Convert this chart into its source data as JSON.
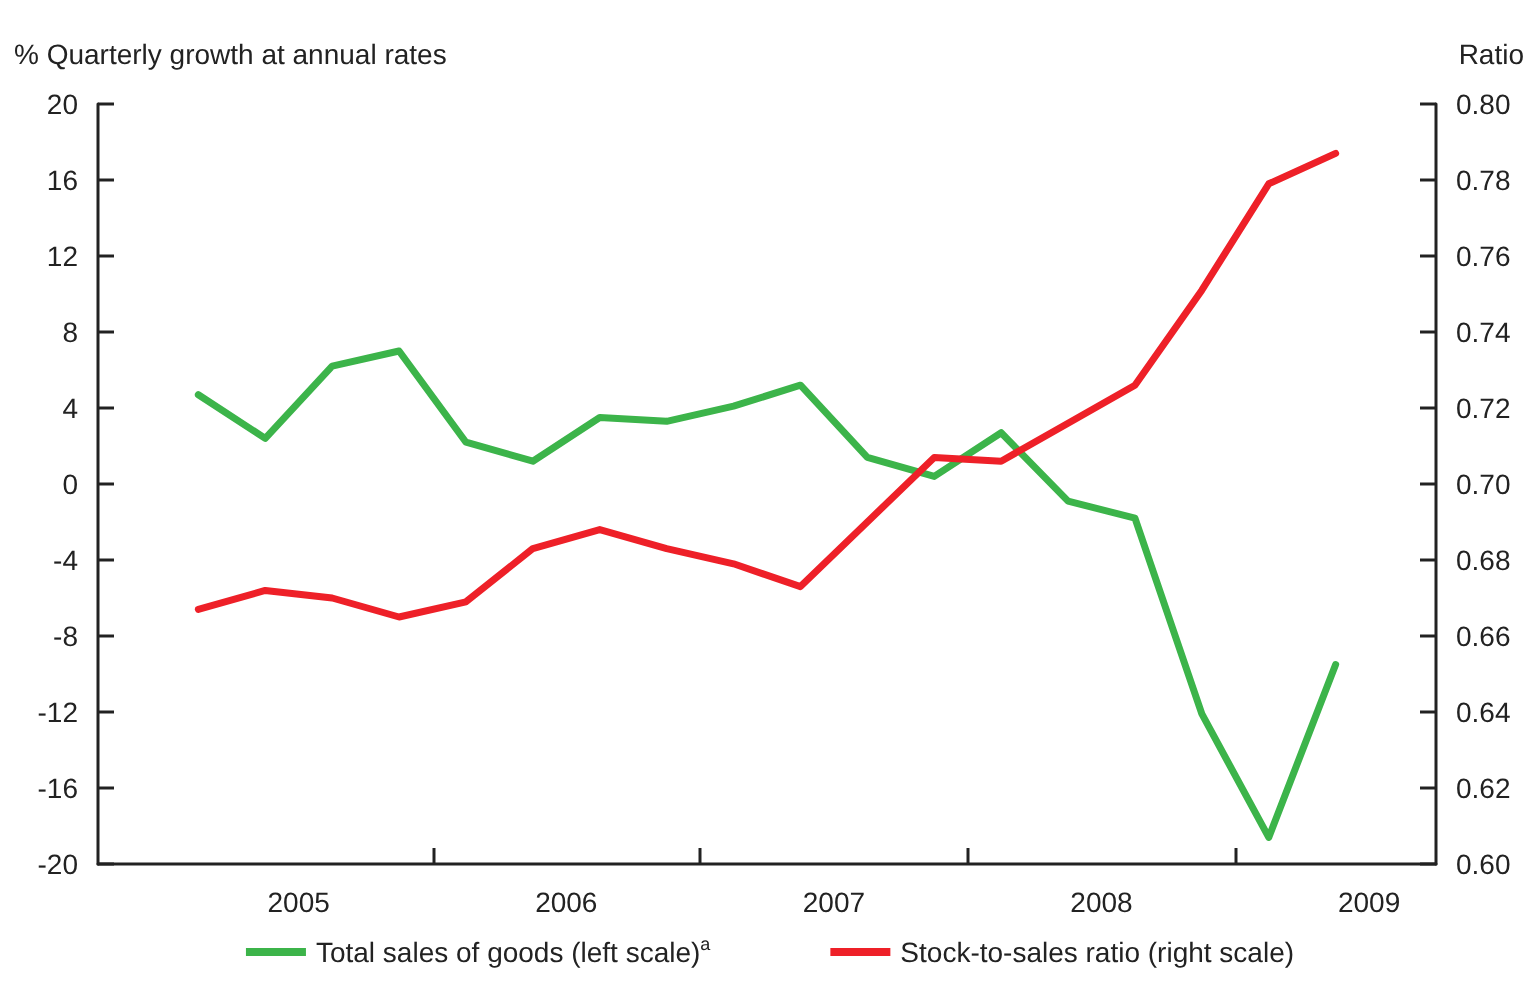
{
  "chart_data": {
    "type": "line",
    "ylabel": "% Quarterly growth at annual rates",
    "y2label": "Ratio",
    "x": [
      2005.125,
      2005.375,
      2005.625,
      2005.875,
      2006.125,
      2006.375,
      2006.625,
      2006.875,
      2007.125,
      2007.375,
      2007.625,
      2007.875,
      2008.125,
      2008.375,
      2008.625,
      2008.875,
      2009.125,
      2009.375
    ],
    "series": [
      {
        "name": "Total sales of goods (left scale)$^{a}$",
        "color": "#3cb44a",
        "values": [
          4.7,
          2.4,
          6.2,
          7.0,
          2.2,
          1.2,
          3.5,
          3.3,
          4.1,
          5.2,
          1.4,
          0.4,
          2.7,
          -0.9,
          -1.8,
          -12.1,
          -18.6,
          -9.5
        ]
      },
      {
        "name": "Stock-to-sales ratio (right scale)",
        "color": "#ee2028",
        "axis": "y2",
        "values": [
          0.667,
          0.672,
          0.67,
          0.665,
          0.669,
          0.683,
          0.688,
          0.683,
          0.679,
          0.673,
          0.69,
          0.707,
          0.706,
          0.716,
          0.726,
          0.751,
          0.779,
          0.787
        ]
      }
    ],
    "xlim": [
      2004.75,
      2009.75
    ],
    "xticks": [
      {
        "value": 2005.5,
        "label": "2005"
      },
      {
        "value": 2006,
        "label": null
      },
      {
        "value": 2006.5,
        "label": "2006"
      },
      {
        "value": 2007,
        "label": null
      },
      {
        "value": 2007.5,
        "label": "2007"
      },
      {
        "value": 2008,
        "label": null
      },
      {
        "value": 2008.5,
        "label": "2008"
      },
      {
        "value": 2009,
        "label": null
      },
      {
        "value": 2009.5,
        "label": "2009"
      }
    ],
    "ylim": [
      -20,
      20
    ],
    "yticks": [
      -20,
      -16,
      -12,
      -8,
      -4,
      0,
      4,
      8,
      12,
      16,
      20
    ],
    "y2lim": [
      0.6,
      0.8
    ],
    "y2ticks": [
      {
        "value": 0.6,
        "label": "0.60"
      },
      0.62,
      0.64,
      0.66,
      0.68,
      {
        "value": 0.7,
        "label": "0.70"
      },
      0.72,
      0.74,
      0.76,
      0.78,
      {
        "value": 0.8,
        "label": "0.80"
      }
    ],
    "grid": false,
    "legend": "bottom",
    "marker": "none",
    "line_style": "solid"
  }
}
